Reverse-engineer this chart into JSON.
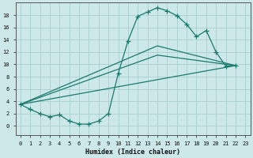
{
  "xlabel": "Humidex (Indice chaleur)",
  "bg_color": "#cce8e8",
  "line_color": "#1a7a6e",
  "grid_color": "#aacfcf",
  "xlim": [
    -0.5,
    23.5
  ],
  "ylim": [
    -1.5,
    20
  ],
  "xticks": [
    0,
    1,
    2,
    3,
    4,
    5,
    6,
    7,
    8,
    9,
    10,
    11,
    12,
    13,
    14,
    15,
    16,
    17,
    18,
    19,
    20,
    21,
    22,
    23
  ],
  "yticks": [
    0,
    2,
    4,
    6,
    8,
    10,
    12,
    14,
    16,
    18
  ],
  "curve_x": [
    0,
    1,
    2,
    3,
    4,
    5,
    6,
    7,
    8,
    9,
    10,
    11,
    12,
    13,
    14,
    15,
    16,
    17,
    18,
    19,
    20,
    21,
    22
  ],
  "curve_y": [
    3.5,
    2.7,
    2.0,
    1.5,
    1.8,
    0.8,
    0.3,
    0.3,
    0.8,
    2.0,
    8.5,
    13.8,
    17.8,
    18.5,
    19.2,
    18.7,
    17.9,
    16.5,
    14.5,
    15.5,
    12.0,
    9.7,
    9.8
  ],
  "line1_x": [
    0,
    22
  ],
  "line1_y": [
    3.5,
    9.8
  ],
  "line2_x": [
    0,
    14,
    22
  ],
  "line2_y": [
    3.5,
    11.5,
    9.8
  ],
  "line3_x": [
    0,
    14,
    22
  ],
  "line3_y": [
    3.5,
    13.0,
    9.8
  ]
}
